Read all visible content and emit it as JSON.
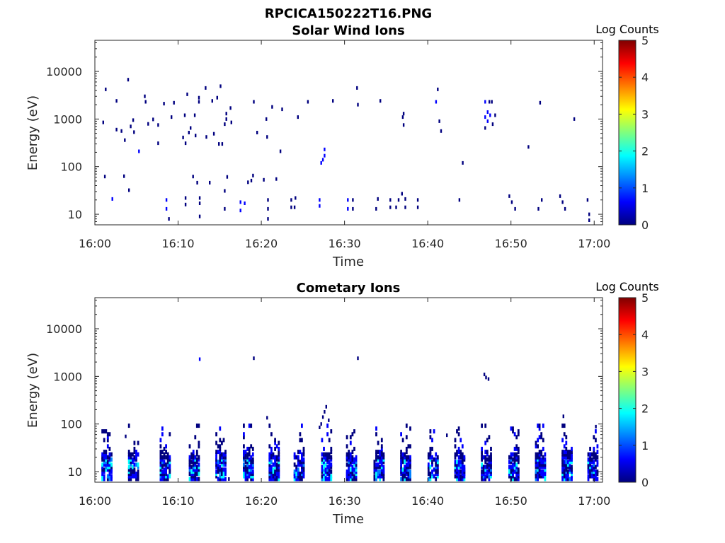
{
  "figure_title": "RPCICA150222T16.PNG",
  "colors": {
    "axis": "#262626",
    "background": "#ffffff",
    "colormap": [
      "#00007f",
      "#0000ff",
      "#007fff",
      "#00ffff",
      "#7fff7f",
      "#ffff00",
      "#ff7f00",
      "#ff0000",
      "#7f0000"
    ]
  },
  "chart_data": [
    {
      "type": "heatmap",
      "title": "Solar Wind Ions",
      "xlabel": "Time",
      "ylabel": "Energy (eV)",
      "xlim_minutes_after_1600": [
        0,
        61
      ],
      "xticks": [
        0,
        10,
        20,
        30,
        40,
        50,
        60
      ],
      "xticklabels": [
        "16:00",
        "16:10",
        "16:20",
        "16:30",
        "16:40",
        "16:50",
        "17:00"
      ],
      "ylim": [
        6,
        45000
      ],
      "yscale": "log",
      "yticks": [
        10,
        100,
        1000,
        10000
      ],
      "yticklabels": [
        "10",
        "100",
        "1000",
        "10000"
      ],
      "colorbar": {
        "title": "Log Counts",
        "range": [
          0,
          5
        ],
        "ticks": [
          0,
          1,
          2,
          3,
          4,
          5
        ],
        "ticklabels": [
          "0",
          "1",
          "2",
          "3",
          "4",
          "5"
        ]
      },
      "cells": [
        [
          1.0,
          850,
          0.2
        ],
        [
          1.2,
          62,
          0.2
        ],
        [
          1.3,
          4200,
          0.2
        ],
        [
          2.1,
          21,
          0.4
        ],
        [
          2.6,
          2400,
          0.3
        ],
        [
          2.6,
          600,
          0.3
        ],
        [
          3.2,
          560,
          0.2
        ],
        [
          3.5,
          63,
          0.2
        ],
        [
          3.6,
          360,
          0.2
        ],
        [
          4.0,
          6700,
          0.3
        ],
        [
          4.1,
          32,
          0.3
        ],
        [
          4.3,
          700,
          0.2
        ],
        [
          4.6,
          950,
          0.2
        ],
        [
          4.7,
          530,
          0.2
        ],
        [
          5.3,
          210,
          0.4
        ],
        [
          6.0,
          3000,
          0.3
        ],
        [
          6.1,
          2300,
          0.3
        ],
        [
          6.4,
          790,
          0.2
        ],
        [
          7.0,
          980,
          0.2
        ],
        [
          7.6,
          750,
          0.2
        ],
        [
          7.6,
          310,
          0.2
        ],
        [
          8.3,
          2100,
          0.2
        ],
        [
          8.6,
          20,
          0.4
        ],
        [
          8.6,
          13,
          0.4
        ],
        [
          8.9,
          8,
          0.3
        ],
        [
          9.2,
          1100,
          0.2
        ],
        [
          9.5,
          2200,
          0.3
        ],
        [
          10.6,
          410,
          0.2
        ],
        [
          10.8,
          1200,
          0.2
        ],
        [
          10.9,
          310,
          0.2
        ],
        [
          11.1,
          3300,
          0.3
        ],
        [
          10.9,
          16,
          0.3
        ],
        [
          10.9,
          22,
          0.3
        ],
        [
          11.3,
          520,
          0.2
        ],
        [
          11.5,
          650,
          0.2
        ],
        [
          11.8,
          62,
          0.2
        ],
        [
          12.0,
          1200,
          0.2
        ],
        [
          12.1,
          450,
          0.2
        ],
        [
          12.3,
          46,
          0.2
        ],
        [
          12.6,
          17,
          0.3
        ],
        [
          12.6,
          22,
          0.3
        ],
        [
          12.6,
          9,
          0.3
        ],
        [
          12.5,
          2800,
          0.3
        ],
        [
          12.5,
          2300,
          0.3
        ],
        [
          13.3,
          4500,
          0.2
        ],
        [
          13.4,
          420,
          0.2
        ],
        [
          13.8,
          46,
          0.3
        ],
        [
          14.1,
          2400,
          0.2
        ],
        [
          14.3,
          490,
          0.2
        ],
        [
          14.7,
          2800,
          0.2
        ],
        [
          14.9,
          300,
          0.2
        ],
        [
          15.1,
          4900,
          0.2
        ],
        [
          15.3,
          300,
          0.2
        ],
        [
          15.6,
          780,
          0.2
        ],
        [
          15.6,
          31,
          0.3
        ],
        [
          15.6,
          13,
          0.3
        ],
        [
          15.8,
          1300,
          0.3
        ],
        [
          15.8,
          1000,
          0.3
        ],
        [
          15.9,
          61,
          0.2
        ],
        [
          16.4,
          850,
          0.2
        ],
        [
          16.3,
          1700,
          0.2
        ],
        [
          17.5,
          18,
          0.4
        ],
        [
          17.5,
          12,
          0.4
        ],
        [
          18.0,
          17,
          0.4
        ],
        [
          18.4,
          47,
          0.3
        ],
        [
          18.8,
          51,
          0.3
        ],
        [
          19.0,
          65,
          0.2
        ],
        [
          19.1,
          2300,
          0.3
        ],
        [
          19.5,
          520,
          0.2
        ],
        [
          20.3,
          53,
          0.3
        ],
        [
          20.6,
          1000,
          0.2
        ],
        [
          20.7,
          420,
          0.2
        ],
        [
          20.8,
          20,
          0.3
        ],
        [
          20.8,
          13,
          0.3
        ],
        [
          20.8,
          8,
          0.3
        ],
        [
          21.3,
          1800,
          0.2
        ],
        [
          21.8,
          55,
          0.2
        ],
        [
          22.3,
          210,
          0.2
        ],
        [
          22.5,
          1600,
          0.2
        ],
        [
          23.6,
          14,
          0.3
        ],
        [
          23.6,
          20,
          0.3
        ],
        [
          24.0,
          14,
          0.3
        ],
        [
          24.1,
          22,
          0.3
        ],
        [
          24.4,
          1100,
          0.2
        ],
        [
          25.6,
          2300,
          0.2
        ],
        [
          27.0,
          15,
          0.4
        ],
        [
          27.0,
          20,
          0.4
        ],
        [
          27.2,
          120,
          0.5
        ],
        [
          27.4,
          140,
          0.5
        ],
        [
          27.6,
          170,
          0.5
        ],
        [
          27.6,
          230,
          0.5
        ],
        [
          28.6,
          2400,
          0.3
        ],
        [
          30.4,
          20,
          0.4
        ],
        [
          30.4,
          13,
          0.4
        ],
        [
          31.0,
          20,
          0.3
        ],
        [
          31.0,
          13,
          0.3
        ],
        [
          31.5,
          4500,
          0.3
        ],
        [
          31.6,
          2000,
          0.3
        ],
        [
          33.8,
          13,
          0.3
        ],
        [
          34.0,
          21,
          0.3
        ],
        [
          34.3,
          2400,
          0.3
        ],
        [
          35.5,
          14,
          0.3
        ],
        [
          35.5,
          20,
          0.3
        ],
        [
          36.2,
          14,
          0.3
        ],
        [
          36.5,
          20,
          0.3
        ],
        [
          36.9,
          27,
          0.3
        ],
        [
          37.0,
          1100,
          0.3
        ],
        [
          37.1,
          1300,
          0.3
        ],
        [
          37.1,
          750,
          0.3
        ],
        [
          37.3,
          14,
          0.3
        ],
        [
          37.3,
          21,
          0.3
        ],
        [
          38.8,
          14,
          0.3
        ],
        [
          38.8,
          20,
          0.3
        ],
        [
          41.0,
          2300,
          0.4
        ],
        [
          41.2,
          4200,
          0.3
        ],
        [
          41.4,
          900,
          0.2
        ],
        [
          41.6,
          560,
          0.3
        ],
        [
          43.8,
          20,
          0.3
        ],
        [
          44.2,
          120,
          0.2
        ],
        [
          46.9,
          2300,
          0.4
        ],
        [
          46.9,
          1100,
          0.4
        ],
        [
          46.9,
          650,
          0.3
        ],
        [
          47.2,
          1400,
          0.4
        ],
        [
          47.2,
          900,
          0.4
        ],
        [
          47.4,
          2300,
          0.3
        ],
        [
          47.5,
          1200,
          0.4
        ],
        [
          47.7,
          2300,
          0.3
        ],
        [
          47.8,
          780,
          0.3
        ],
        [
          48.1,
          1200,
          0.3
        ],
        [
          49.8,
          24,
          0.3
        ],
        [
          50.1,
          18,
          0.3
        ],
        [
          50.5,
          13,
          0.3
        ],
        [
          52.1,
          260,
          0.3
        ],
        [
          53.3,
          13,
          0.3
        ],
        [
          53.5,
          2200,
          0.3
        ],
        [
          53.7,
          20,
          0.3
        ],
        [
          55.9,
          24,
          0.3
        ],
        [
          56.2,
          18,
          0.3
        ],
        [
          56.5,
          13,
          0.3
        ],
        [
          57.6,
          1000,
          0.2
        ],
        [
          59.2,
          20,
          0.3
        ],
        [
          59.4,
          10,
          0.3
        ],
        [
          59.4,
          7.5,
          0.3
        ]
      ]
    },
    {
      "type": "heatmap",
      "title": "Cometary Ions",
      "xlabel": "Time",
      "ylabel": "Energy (eV)",
      "xlim_minutes_after_1600": [
        0,
        61
      ],
      "xticks": [
        0,
        10,
        20,
        30,
        40,
        50,
        60
      ],
      "xticklabels": [
        "16:00",
        "16:10",
        "16:20",
        "16:30",
        "16:40",
        "16:50",
        "17:00"
      ],
      "ylim": [
        6,
        45000
      ],
      "yscale": "log",
      "yticks": [
        10,
        100,
        1000,
        10000
      ],
      "yticklabels": [
        "10",
        "100",
        "1000",
        "10000"
      ],
      "colorbar": {
        "title": "Log Counts",
        "range": [
          0,
          5
        ],
        "ticks": [
          0,
          1,
          2,
          3,
          4,
          5
        ],
        "ticklabels": [
          "0",
          "1",
          "2",
          "3",
          "4",
          "5"
        ]
      },
      "bursts": [
        1.2,
        4.4,
        8.2,
        11.7,
        14.9,
        18.2,
        21.3,
        24.3,
        27.6,
        30.6,
        33.9,
        37.1,
        40.4,
        43.6,
        46.8,
        50.1,
        53.3,
        56.5,
        59.6
      ],
      "cells": [
        [
          12.6,
          2300,
          0.4
        ],
        [
          19.1,
          2400,
          0.3
        ],
        [
          31.6,
          2400,
          0.3
        ],
        [
          46.8,
          1100,
          0.3
        ],
        [
          47.0,
          950,
          0.3
        ],
        [
          47.3,
          880,
          0.3
        ],
        [
          27.2,
          100,
          0.3
        ],
        [
          27.4,
          140,
          0.3
        ],
        [
          27.6,
          180,
          0.3
        ],
        [
          27.8,
          230,
          0.3
        ],
        [
          28.1,
          120,
          0.3
        ],
        [
          27.0,
          85,
          0.3
        ],
        [
          3.7,
          55,
          0.3
        ],
        [
          20.7,
          135,
          0.3
        ],
        [
          56.3,
          145,
          0.3
        ],
        [
          16.1,
          7,
          0.3
        ],
        [
          60.2,
          88,
          0.3
        ],
        [
          42.3,
          58,
          0.3
        ]
      ]
    }
  ]
}
